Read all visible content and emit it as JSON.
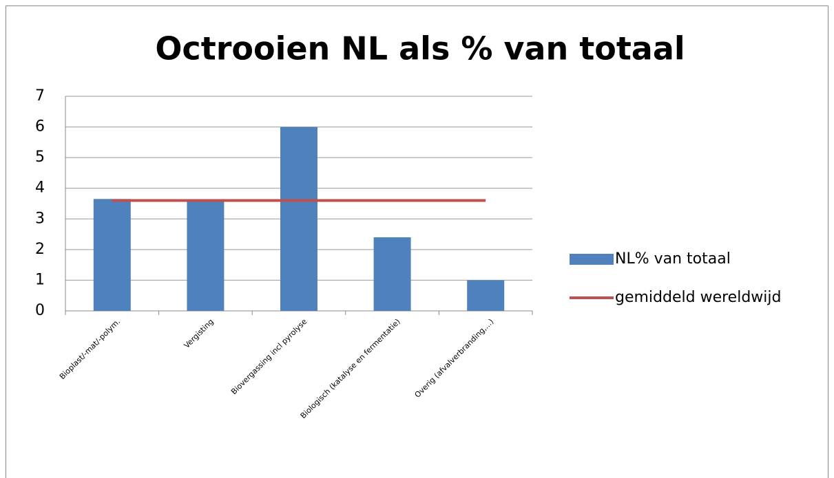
{
  "chart_data": {
    "type": "bar",
    "title": "Octrooien NL als % van totaal",
    "categories": [
      "Bioplast/-mat/-polym.",
      "Vergisting",
      "Biovergassing incl pyrolyse",
      "Biologisch (katalyse en fermentatie)",
      "Overig (afvalverbranding,...)"
    ],
    "series": [
      {
        "name": "NL% van totaal",
        "type": "bar",
        "color": "#4f81bd",
        "values": [
          3.65,
          3.6,
          6.0,
          2.4,
          1.0
        ]
      },
      {
        "name": "gemiddeld wereldwijd",
        "type": "line",
        "color": "#c0504d",
        "values": [
          3.6,
          3.6,
          3.6,
          3.6,
          3.6
        ]
      }
    ],
    "ylim": [
      0,
      7
    ],
    "yticks": [
      0,
      1,
      2,
      3,
      4,
      5,
      6,
      7
    ],
    "grid": true,
    "legend": "right"
  }
}
